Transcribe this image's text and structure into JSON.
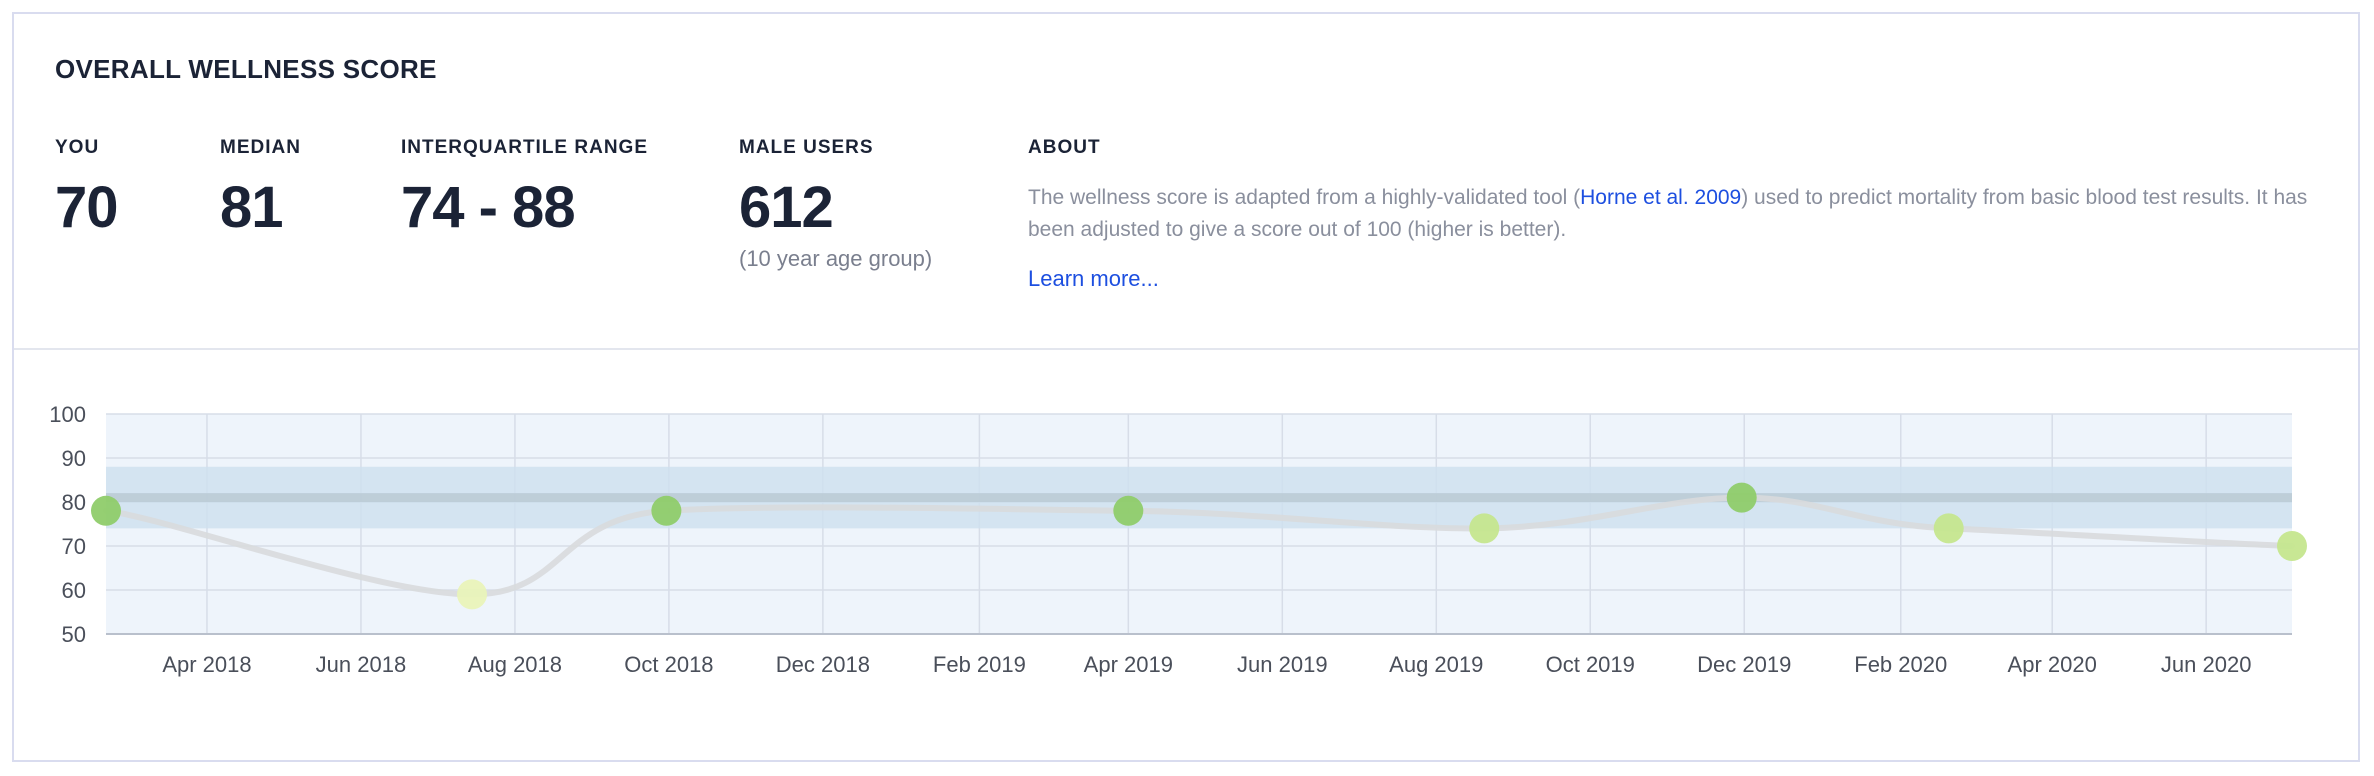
{
  "header": {
    "title": "OVERALL WELLNESS SCORE"
  },
  "stats": [
    {
      "label": "YOU",
      "value": "70"
    },
    {
      "label": "MEDIAN",
      "value": "81"
    },
    {
      "label": "INTERQUARTILE RANGE",
      "value": "74 - 88"
    },
    {
      "label": "MALE USERS",
      "value": "612",
      "sub": "(10 year age group)"
    }
  ],
  "about": {
    "label": "ABOUT",
    "text_before": "The wellness score is adapted from a highly-validated tool (",
    "link_text": "Horne et al. 2009",
    "text_after": ") used to predict mortality from basic blood test results. It has been adjusted to give a score out of 100 (higher is better).",
    "learn_more": "Learn more..."
  },
  "colors": {
    "band": "#cfe0ee",
    "median_line": "#b9c9d3",
    "plot_bg": "#eef4fb",
    "trend_line": "#d8dadd",
    "point_high": "#8fcc6a",
    "point_mid": "#c5e68e",
    "point_low": "#e9f3b9"
  },
  "chart_data": {
    "type": "line",
    "x_tick_labels": [
      "Apr 2018",
      "Jun 2018",
      "Aug 2018",
      "Oct 2018",
      "Dec 2018",
      "Feb 2019",
      "Apr 2019",
      "Jun 2019",
      "Aug 2019",
      "Oct 2019",
      "Dec 2019",
      "Feb 2020",
      "Apr 2020",
      "Jun 2020"
    ],
    "x_tick_dates": [
      "2018-04-01",
      "2018-06-01",
      "2018-08-01",
      "2018-10-01",
      "2018-12-01",
      "2019-02-01",
      "2019-04-01",
      "2019-06-01",
      "2019-08-01",
      "2019-10-01",
      "2019-12-01",
      "2020-02-01",
      "2020-04-01",
      "2020-06-01"
    ],
    "x_range": [
      "2018-02-20",
      "2020-07-05"
    ],
    "y_ticks": [
      100,
      90,
      80,
      70,
      60,
      50
    ],
    "ylim": [
      50,
      100
    ],
    "grid": true,
    "median": 81,
    "interquartile_range": [
      74,
      88
    ],
    "series": [
      {
        "points": [
          {
            "x": "2018-02-20",
            "y": 78
          },
          {
            "x": "2018-07-15",
            "y": 59
          },
          {
            "x": "2018-09-30",
            "y": 78
          },
          {
            "x": "2019-04-01",
            "y": 78
          },
          {
            "x": "2019-08-20",
            "y": 74
          },
          {
            "x": "2019-11-30",
            "y": 81
          },
          {
            "x": "2020-02-20",
            "y": 74
          },
          {
            "x": "2020-07-05",
            "y": 70
          }
        ]
      }
    ]
  }
}
